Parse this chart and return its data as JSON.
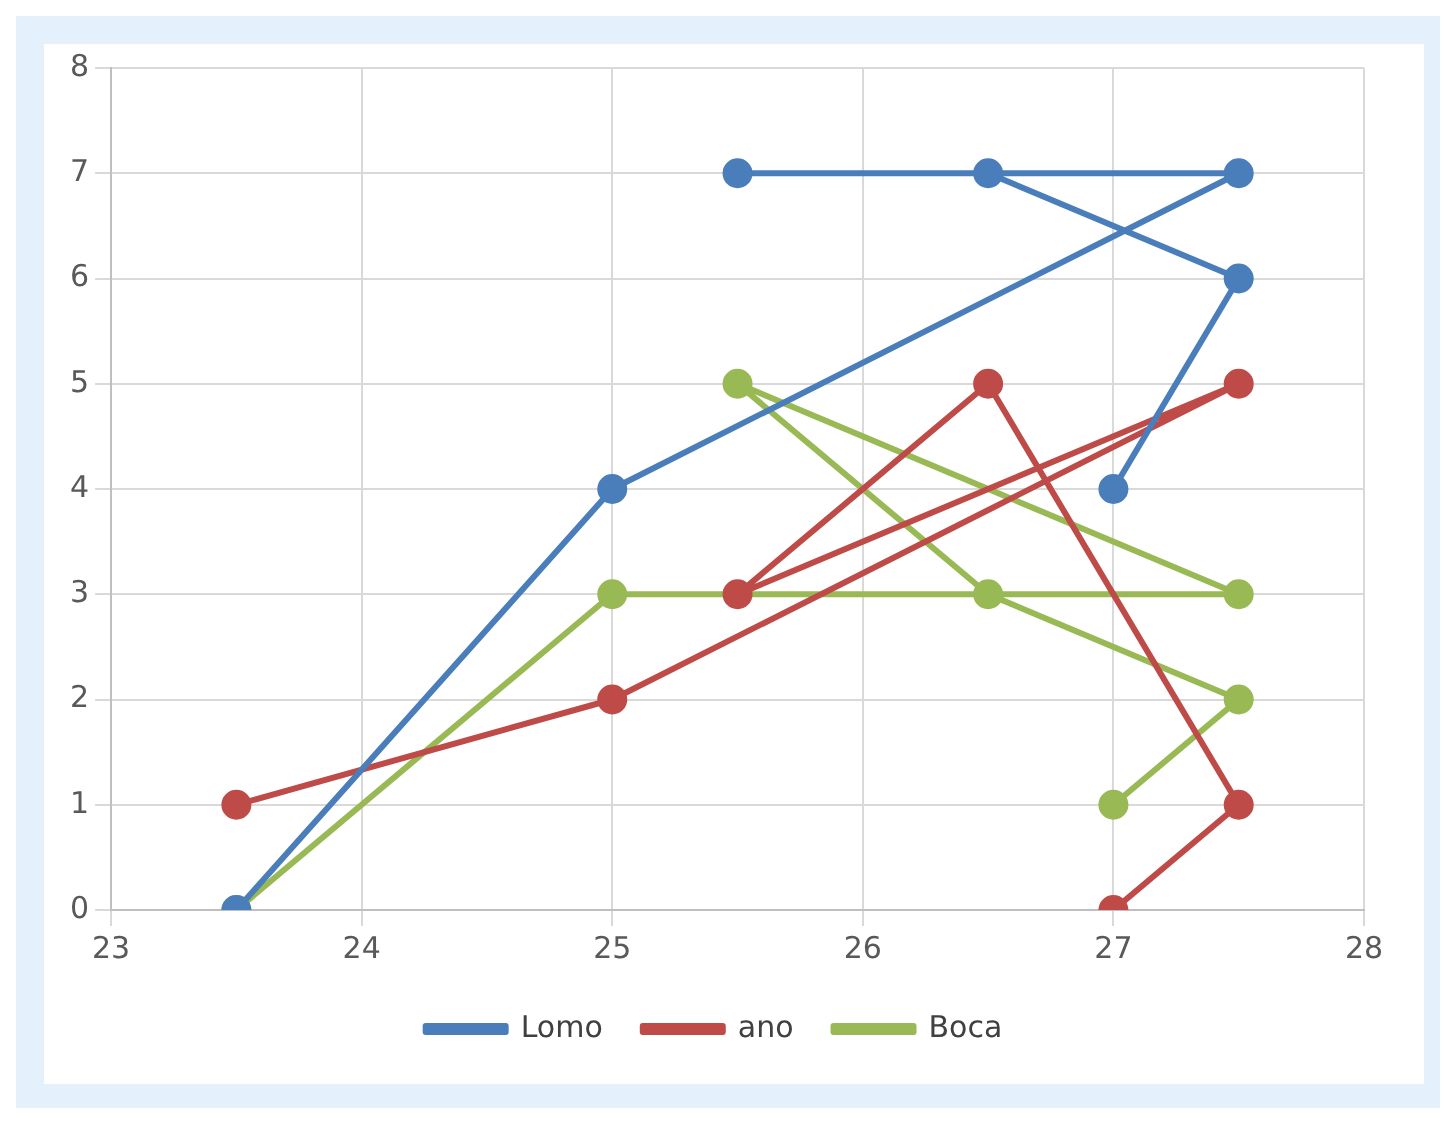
{
  "chart_data": {
    "type": "line",
    "xlim": [
      23,
      28
    ],
    "xticks": [
      23,
      24,
      25,
      26,
      27,
      28
    ],
    "ylim": [
      0,
      8
    ],
    "yticks": [
      0,
      1,
      2,
      3,
      4,
      5,
      6,
      7,
      8
    ],
    "grid": true,
    "legend": "bottom",
    "marker": "circle",
    "line_style": "solid",
    "series": [
      {
        "name": "Lomo",
        "color": "#4a7ebb",
        "x": [
          23.5,
          25,
          27.5,
          25.5,
          26.5,
          27.5,
          27
        ],
        "values": [
          0,
          4,
          7,
          7,
          7,
          6,
          4
        ]
      },
      {
        "name": "ano",
        "color": "#be4b48",
        "x": [
          23.5,
          25,
          27.5,
          25.5,
          26.5,
          27.5,
          27
        ],
        "values": [
          1,
          2,
          5,
          3,
          5,
          1,
          0
        ]
      },
      {
        "name": "Boca",
        "color": "#98b954",
        "x": [
          23.5,
          25,
          27.5,
          25.5,
          26.5,
          27.5,
          27
        ],
        "values": [
          0,
          3,
          3,
          5,
          3,
          2,
          1
        ]
      }
    ]
  }
}
